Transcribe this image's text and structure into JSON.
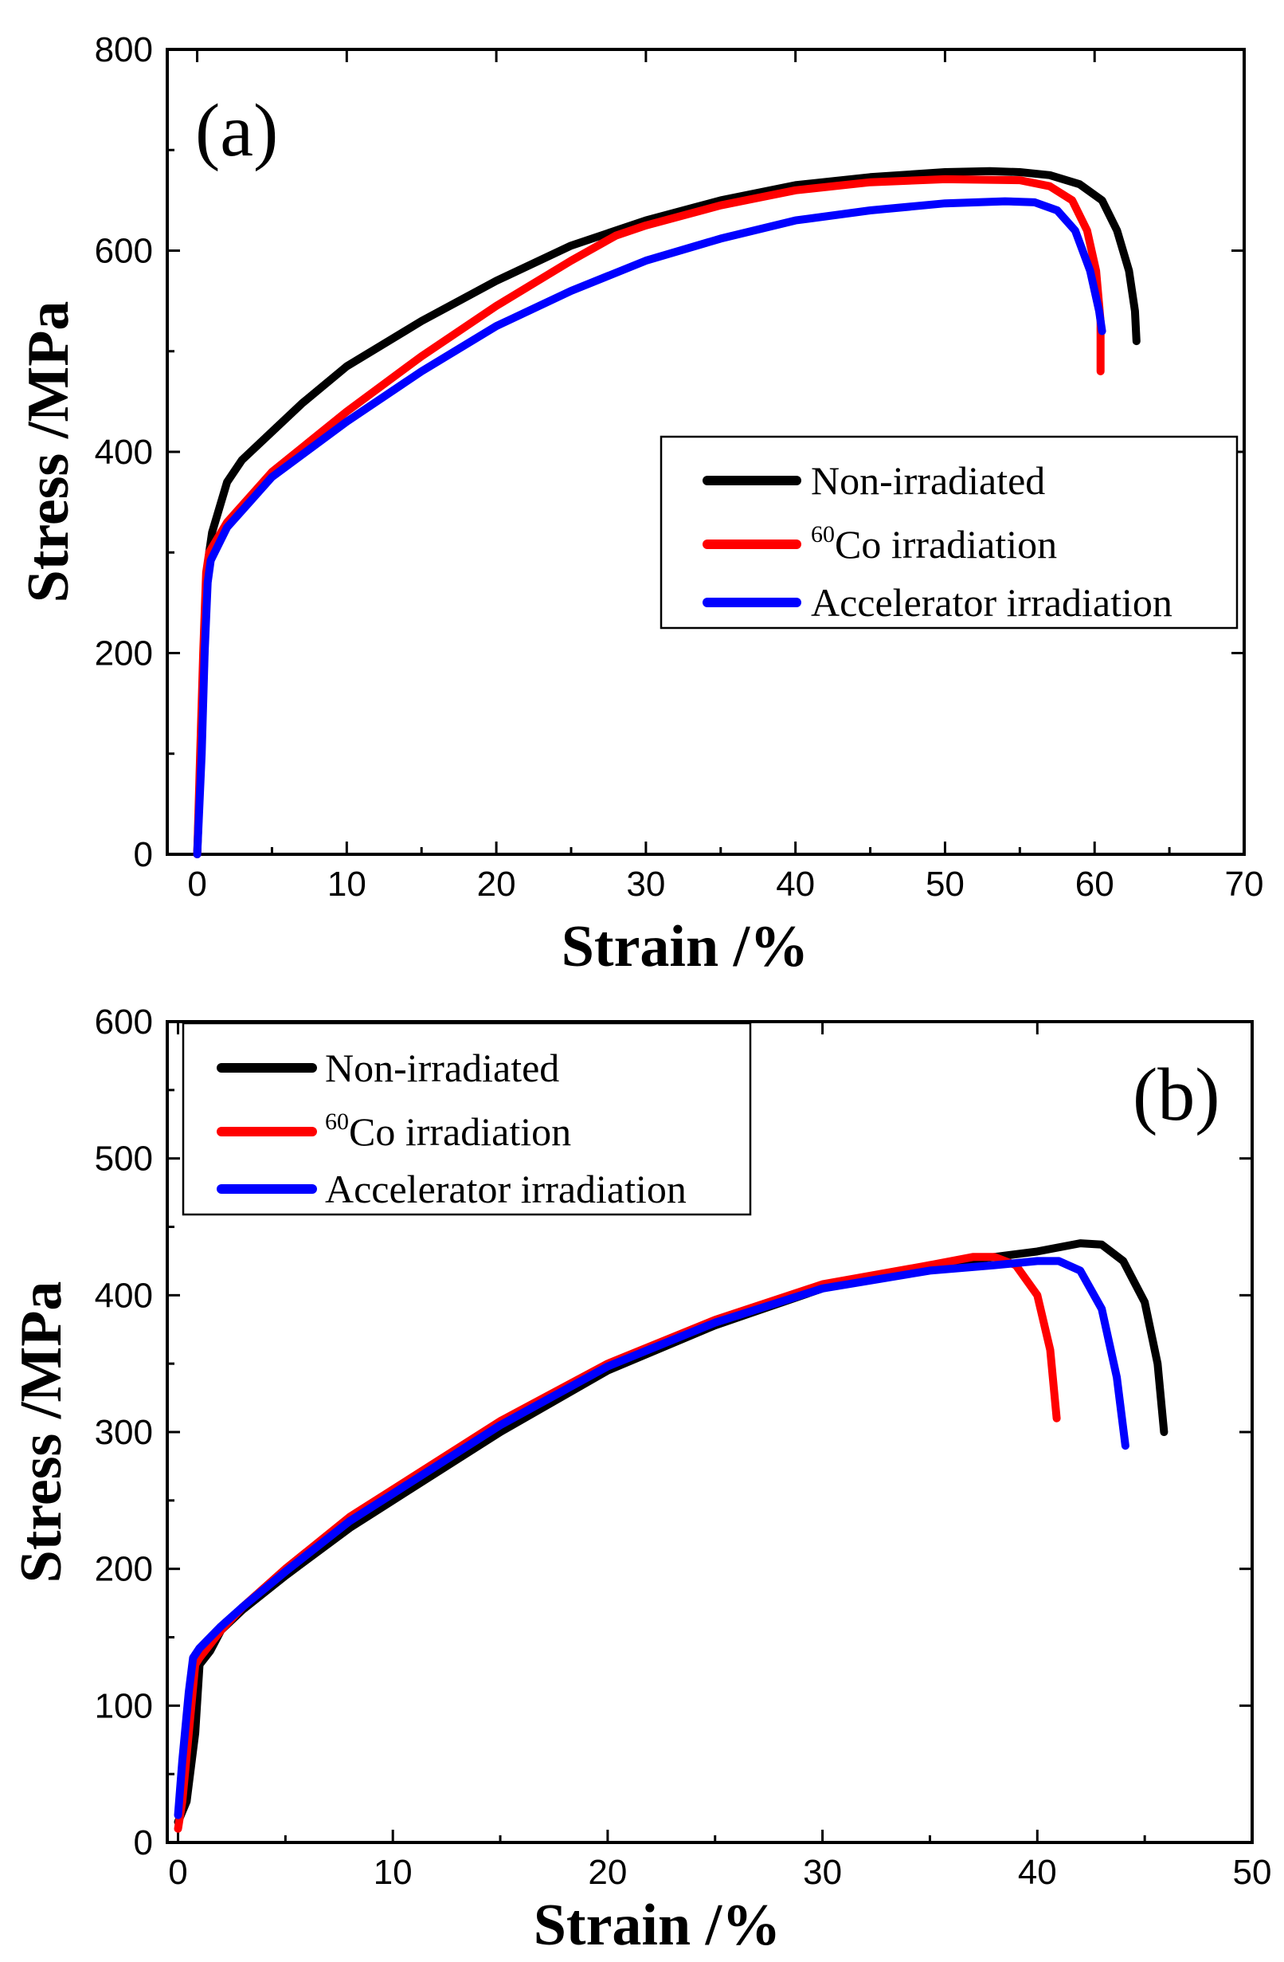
{
  "chart_data": [
    {
      "type": "line",
      "panel_label": "(a)",
      "xlabel": "Strain /%",
      "ylabel": "Stress /MPa",
      "xlim": [
        -2,
        70
      ],
      "ylim": [
        0,
        800
      ],
      "xticks": [
        0,
        10,
        20,
        30,
        40,
        50,
        60,
        70
      ],
      "yticks": [
        0,
        200,
        400,
        600,
        800
      ],
      "legend_position": "center-right",
      "series": [
        {
          "name": "Non-irradiated",
          "color": "#000000",
          "points": [
            [
              0,
              0
            ],
            [
              0.3,
              120
            ],
            [
              0.6,
              250
            ],
            [
              0.8,
              300
            ],
            [
              1,
              320
            ],
            [
              2,
              370
            ],
            [
              3,
              392
            ],
            [
              5,
              420
            ],
            [
              7,
              448
            ],
            [
              10,
              485
            ],
            [
              15,
              530
            ],
            [
              20,
              570
            ],
            [
              25,
              605
            ],
            [
              30,
              630
            ],
            [
              35,
              650
            ],
            [
              40,
              665
            ],
            [
              45,
              673
            ],
            [
              50,
              678
            ],
            [
              53,
              679
            ],
            [
              55,
              678
            ],
            [
              57,
              675
            ],
            [
              59,
              666
            ],
            [
              60.5,
              650
            ],
            [
              61.5,
              620
            ],
            [
              62.3,
              580
            ],
            [
              62.7,
              540
            ],
            [
              62.8,
              510
            ]
          ]
        },
        {
          "name": "Co irradiation",
          "sup": "60",
          "color": "#ff0000",
          "points": [
            [
              0,
              0
            ],
            [
              0.2,
              100
            ],
            [
              0.4,
              200
            ],
            [
              0.6,
              280
            ],
            [
              0.8,
              300
            ],
            [
              1,
              305
            ],
            [
              2,
              330
            ],
            [
              5,
              380
            ],
            [
              10,
              440
            ],
            [
              15,
              495
            ],
            [
              20,
              545
            ],
            [
              25,
              590
            ],
            [
              28,
              615
            ],
            [
              30,
              625
            ],
            [
              35,
              645
            ],
            [
              40,
              660
            ],
            [
              45,
              668
            ],
            [
              50,
              671
            ],
            [
              55,
              670
            ],
            [
              57,
              664
            ],
            [
              58.5,
              650
            ],
            [
              59.5,
              620
            ],
            [
              60.1,
              580
            ],
            [
              60.4,
              530
            ],
            [
              60.4,
              480
            ]
          ]
        },
        {
          "name": "Accelerator irradiation",
          "color": "#0000ff",
          "points": [
            [
              0,
              0
            ],
            [
              0.3,
              100
            ],
            [
              0.5,
              200
            ],
            [
              0.7,
              270
            ],
            [
              0.9,
              292
            ],
            [
              1,
              295
            ],
            [
              2,
              325
            ],
            [
              5,
              375
            ],
            [
              10,
              430
            ],
            [
              15,
              480
            ],
            [
              20,
              525
            ],
            [
              25,
              560
            ],
            [
              30,
              590
            ],
            [
              35,
              612
            ],
            [
              40,
              630
            ],
            [
              45,
              640
            ],
            [
              50,
              647
            ],
            [
              54,
              649
            ],
            [
              56,
              648
            ],
            [
              57.5,
              640
            ],
            [
              58.7,
              620
            ],
            [
              59.7,
              580
            ],
            [
              60.3,
              540
            ],
            [
              60.5,
              520
            ]
          ]
        }
      ]
    },
    {
      "type": "line",
      "panel_label": "(b)",
      "xlabel": "Strain /%",
      "ylabel": "Stress /MPa",
      "xlim": [
        -0.5,
        50
      ],
      "ylim": [
        0,
        600
      ],
      "xticks": [
        0,
        10,
        20,
        30,
        40,
        50
      ],
      "yticks": [
        0,
        100,
        200,
        300,
        400,
        500,
        600
      ],
      "legend_position": "top-left",
      "series": [
        {
          "name": "Non-irradiated",
          "color": "#000000",
          "points": [
            [
              0,
              15
            ],
            [
              0.4,
              30
            ],
            [
              0.8,
              80
            ],
            [
              1,
              130
            ],
            [
              1.5,
              140
            ],
            [
              2,
              155
            ],
            [
              3,
              170
            ],
            [
              5,
              195
            ],
            [
              8,
              230
            ],
            [
              10,
              250
            ],
            [
              15,
              300
            ],
            [
              20,
              345
            ],
            [
              25,
              378
            ],
            [
              30,
              405
            ],
            [
              35,
              422
            ],
            [
              38,
              428
            ],
            [
              40,
              432
            ],
            [
              42,
              438
            ],
            [
              43,
              437
            ],
            [
              44,
              425
            ],
            [
              45,
              395
            ],
            [
              45.6,
              350
            ],
            [
              45.9,
              300
            ]
          ]
        },
        {
          "name": "Co irradiation",
          "sup": "60",
          "color": "#ff0000",
          "points": [
            [
              0,
              10
            ],
            [
              0.2,
              30
            ],
            [
              0.5,
              80
            ],
            [
              0.8,
              130
            ],
            [
              1,
              135
            ],
            [
              2,
              155
            ],
            [
              3,
              172
            ],
            [
              5,
              200
            ],
            [
              8,
              238
            ],
            [
              10,
              258
            ],
            [
              15,
              308
            ],
            [
              20,
              350
            ],
            [
              25,
              382
            ],
            [
              30,
              408
            ],
            [
              35,
              422
            ],
            [
              37,
              428
            ],
            [
              38,
              428
            ],
            [
              39,
              422
            ],
            [
              40,
              400
            ],
            [
              40.6,
              360
            ],
            [
              40.9,
              310
            ]
          ]
        },
        {
          "name": "Accelerator irradiation",
          "color": "#0000ff",
          "points": [
            [
              0,
              20
            ],
            [
              0.2,
              60
            ],
            [
              0.5,
              110
            ],
            [
              0.7,
              135
            ],
            [
              1,
              142
            ],
            [
              2,
              158
            ],
            [
              3,
              172
            ],
            [
              5,
              198
            ],
            [
              8,
              235
            ],
            [
              10,
              255
            ],
            [
              15,
              305
            ],
            [
              20,
              348
            ],
            [
              25,
              380
            ],
            [
              30,
              405
            ],
            [
              35,
              418
            ],
            [
              38,
              422
            ],
            [
              40,
              425
            ],
            [
              41,
              425
            ],
            [
              42,
              418
            ],
            [
              43,
              390
            ],
            [
              43.7,
              340
            ],
            [
              44.1,
              290
            ]
          ]
        }
      ]
    }
  ]
}
